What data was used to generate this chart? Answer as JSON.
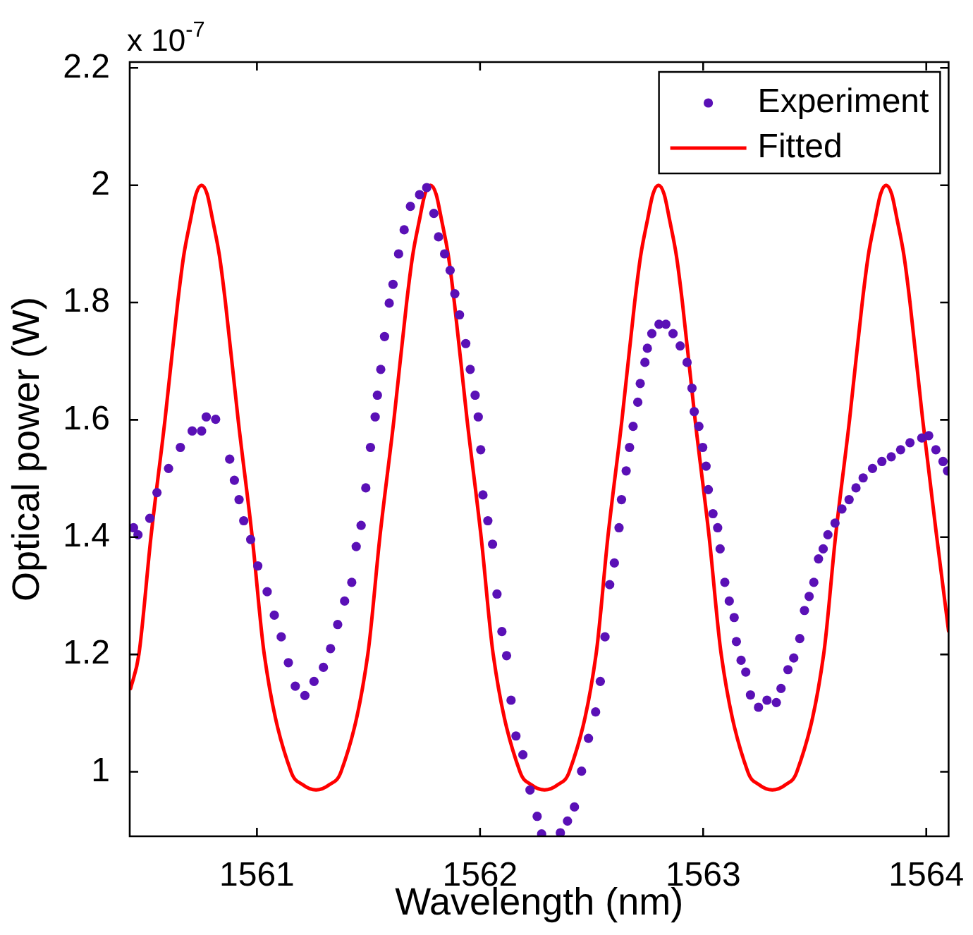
{
  "chart_data": {
    "type": "scatter",
    "xlabel": "Wavelength (nm)",
    "ylabel": "Optical power (W)",
    "annotations": [
      "x 10$^{-7}$"
    ],
    "xlim": [
      1560.43,
      1564.1
    ],
    "xticks": [
      1561,
      1562,
      1563,
      1564
    ],
    "ylim": [
      0.89,
      2.21
    ],
    "yticks": [
      1,
      1.2,
      1.4,
      1.6,
      1.8,
      2,
      2.2
    ],
    "grid": false,
    "legend": "top right",
    "series": [
      {
        "name": "Experiment",
        "color": "#5a10b6",
        "marker": "circle",
        "x": [
          1560.447,
          1560.467,
          1560.52,
          1560.552,
          1560.604,
          1560.657,
          1560.71,
          1560.752,
          1560.773,
          1560.815,
          1560.878,
          1560.899,
          1560.92,
          1560.941,
          1560.972,
          1561.004,
          1561.046,
          1561.078,
          1561.109,
          1561.141,
          1561.172,
          1561.215,
          1561.256,
          1561.298,
          1561.33,
          1561.362,
          1561.393,
          1561.425,
          1561.445,
          1561.467,
          1561.488,
          1561.509,
          1561.53,
          1561.54,
          1561.555,
          1561.572,
          1561.593,
          1561.61,
          1561.635,
          1561.66,
          1561.688,
          1561.729,
          1561.761,
          1561.793,
          1561.814,
          1561.841,
          1561.866,
          1561.887,
          1561.908,
          1561.936,
          1561.956,
          1561.978,
          1561.992,
          1562.003,
          1562.013,
          1562.035,
          1562.056,
          1562.076,
          1562.098,
          1562.119,
          1562.139,
          1562.161,
          1562.192,
          1562.224,
          1562.256,
          1562.276,
          1562.36,
          1562.392,
          1562.423,
          1562.455,
          1562.486,
          1562.518,
          1562.539,
          1562.56,
          1562.581,
          1562.602,
          1562.623,
          1562.634,
          1562.655,
          1562.67,
          1562.686,
          1562.707,
          1562.718,
          1562.739,
          1562.75,
          1562.77,
          1562.802,
          1562.833,
          1562.865,
          1562.897,
          1562.928,
          1562.95,
          1562.96,
          1562.981,
          1562.998,
          1563.013,
          1563.023,
          1563.044,
          1563.065,
          1563.076,
          1563.097,
          1563.117,
          1563.139,
          1563.149,
          1563.17,
          1563.191,
          1563.212,
          1563.248,
          1563.286,
          1563.328,
          1563.349,
          1563.38,
          1563.406,
          1563.433,
          1563.454,
          1563.475,
          1563.496,
          1563.517,
          1563.538,
          1563.559,
          1563.591,
          1563.622,
          1563.654,
          1563.685,
          1563.717,
          1563.759,
          1563.801,
          1563.843,
          1563.885,
          1563.927,
          1563.98,
          1564.011,
          1564.043,
          1564.075,
          1564.095
        ],
        "values": [
          1.416,
          1.404,
          1.432,
          1.476,
          1.517,
          1.553,
          1.581,
          1.581,
          1.605,
          1.601,
          1.533,
          1.497,
          1.464,
          1.428,
          1.396,
          1.351,
          1.307,
          1.267,
          1.23,
          1.186,
          1.146,
          1.13,
          1.154,
          1.178,
          1.21,
          1.251,
          1.291,
          1.323,
          1.384,
          1.42,
          1.484,
          1.553,
          1.605,
          1.642,
          1.686,
          1.742,
          1.799,
          1.831,
          1.883,
          1.924,
          1.964,
          1.984,
          1.996,
          1.952,
          1.912,
          1.883,
          1.855,
          1.815,
          1.779,
          1.73,
          1.686,
          1.642,
          1.605,
          1.549,
          1.472,
          1.428,
          1.388,
          1.303,
          1.239,
          1.198,
          1.122,
          1.061,
          1.029,
          0.969,
          0.924,
          0.894,
          0.896,
          0.916,
          0.94,
          1.001,
          1.057,
          1.102,
          1.154,
          1.23,
          1.319,
          1.356,
          1.416,
          1.464,
          1.513,
          1.553,
          1.589,
          1.63,
          1.662,
          1.698,
          1.722,
          1.747,
          1.763,
          1.763,
          1.747,
          1.726,
          1.698,
          1.654,
          1.614,
          1.589,
          1.553,
          1.521,
          1.481,
          1.44,
          1.416,
          1.38,
          1.323,
          1.291,
          1.263,
          1.222,
          1.19,
          1.17,
          1.131,
          1.11,
          1.122,
          1.118,
          1.142,
          1.174,
          1.194,
          1.227,
          1.275,
          1.299,
          1.323,
          1.363,
          1.38,
          1.404,
          1.424,
          1.448,
          1.464,
          1.484,
          1.501,
          1.517,
          1.529,
          1.537,
          1.549,
          1.561,
          1.569,
          1.573,
          1.549,
          1.529,
          1.513
        ]
      },
      {
        "name": "Fitted",
        "type": "line",
        "color": "#ff0000",
        "marker": "none",
        "line_style": "solid",
        "x": [
          1560.434,
          1560.471,
          1560.525,
          1560.588,
          1560.645,
          1560.672,
          1560.702,
          1560.727,
          1560.752,
          1560.777,
          1560.802,
          1560.832,
          1560.859,
          1560.916,
          1560.979,
          1561.033,
          1561.153,
          1561.205,
          1561.265,
          1561.325,
          1561.377,
          1561.497,
          1561.551,
          1561.614,
          1561.671,
          1561.698,
          1561.728,
          1561.753,
          1561.778,
          1561.803,
          1561.828,
          1561.858,
          1561.885,
          1561.942,
          1562.005,
          1562.059,
          1562.179,
          1562.229,
          1562.289,
          1562.349,
          1562.4,
          1562.52,
          1562.573,
          1562.636,
          1562.693,
          1562.72,
          1562.75,
          1562.775,
          1562.8,
          1562.825,
          1562.85,
          1562.88,
          1562.907,
          1562.964,
          1563.027,
          1563.081,
          1563.2,
          1563.25,
          1563.31,
          1563.37,
          1563.42,
          1563.54,
          1563.593,
          1563.656,
          1563.713,
          1563.74,
          1563.77,
          1563.795,
          1563.82,
          1563.845,
          1563.87,
          1563.9,
          1563.927,
          1563.984,
          1564.047,
          1564.1
        ],
        "values": [
          1.142,
          1.2,
          1.4,
          1.6,
          1.8,
          1.88,
          1.94,
          1.985,
          2,
          1.985,
          1.94,
          1.88,
          1.8,
          1.6,
          1.4,
          1.2,
          1,
          0.978,
          0.969,
          0.978,
          1,
          1.2,
          1.4,
          1.6,
          1.8,
          1.88,
          1.94,
          1.985,
          2,
          1.985,
          1.94,
          1.88,
          1.8,
          1.6,
          1.4,
          1.2,
          1,
          0.978,
          0.969,
          0.978,
          1,
          1.2,
          1.4,
          1.6,
          1.8,
          1.88,
          1.94,
          1.985,
          2,
          1.985,
          1.94,
          1.88,
          1.8,
          1.6,
          1.4,
          1.2,
          1,
          0.978,
          0.969,
          0.978,
          1,
          1.2,
          1.4,
          1.6,
          1.8,
          1.88,
          1.94,
          1.985,
          2,
          1.985,
          1.94,
          1.88,
          1.8,
          1.6,
          1.4,
          1.24
        ]
      }
    ]
  }
}
